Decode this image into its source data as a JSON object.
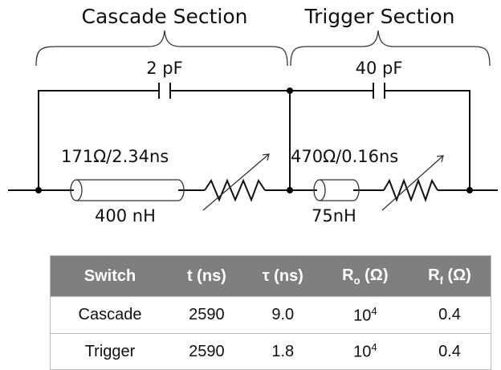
{
  "sections": [
    {
      "title": "Cascade Section",
      "capacitor": "2 pF",
      "line": "171Ω/2.34ns",
      "inductance": "400 nH"
    },
    {
      "title": "Trigger Section",
      "capacitor": "40 pF",
      "line": "470Ω/0.16ns",
      "inductance": "75nH"
    }
  ],
  "table": {
    "header": [
      {
        "main": "Switch"
      },
      {
        "main": "t (ns)"
      },
      {
        "main": "τ (ns)"
      },
      {
        "main": "R",
        "sub": "o",
        "unit": "(Ω)"
      },
      {
        "main": "R",
        "sub": "f",
        "unit": "(Ω)"
      }
    ],
    "rows": [
      [
        "Cascade",
        "2590",
        "9.0",
        {
          "base": "10",
          "exp": "4"
        },
        "0.4"
      ],
      [
        "Trigger",
        "2590",
        "1.8",
        {
          "base": "10",
          "exp": "4"
        },
        "0.4"
      ]
    ]
  }
}
